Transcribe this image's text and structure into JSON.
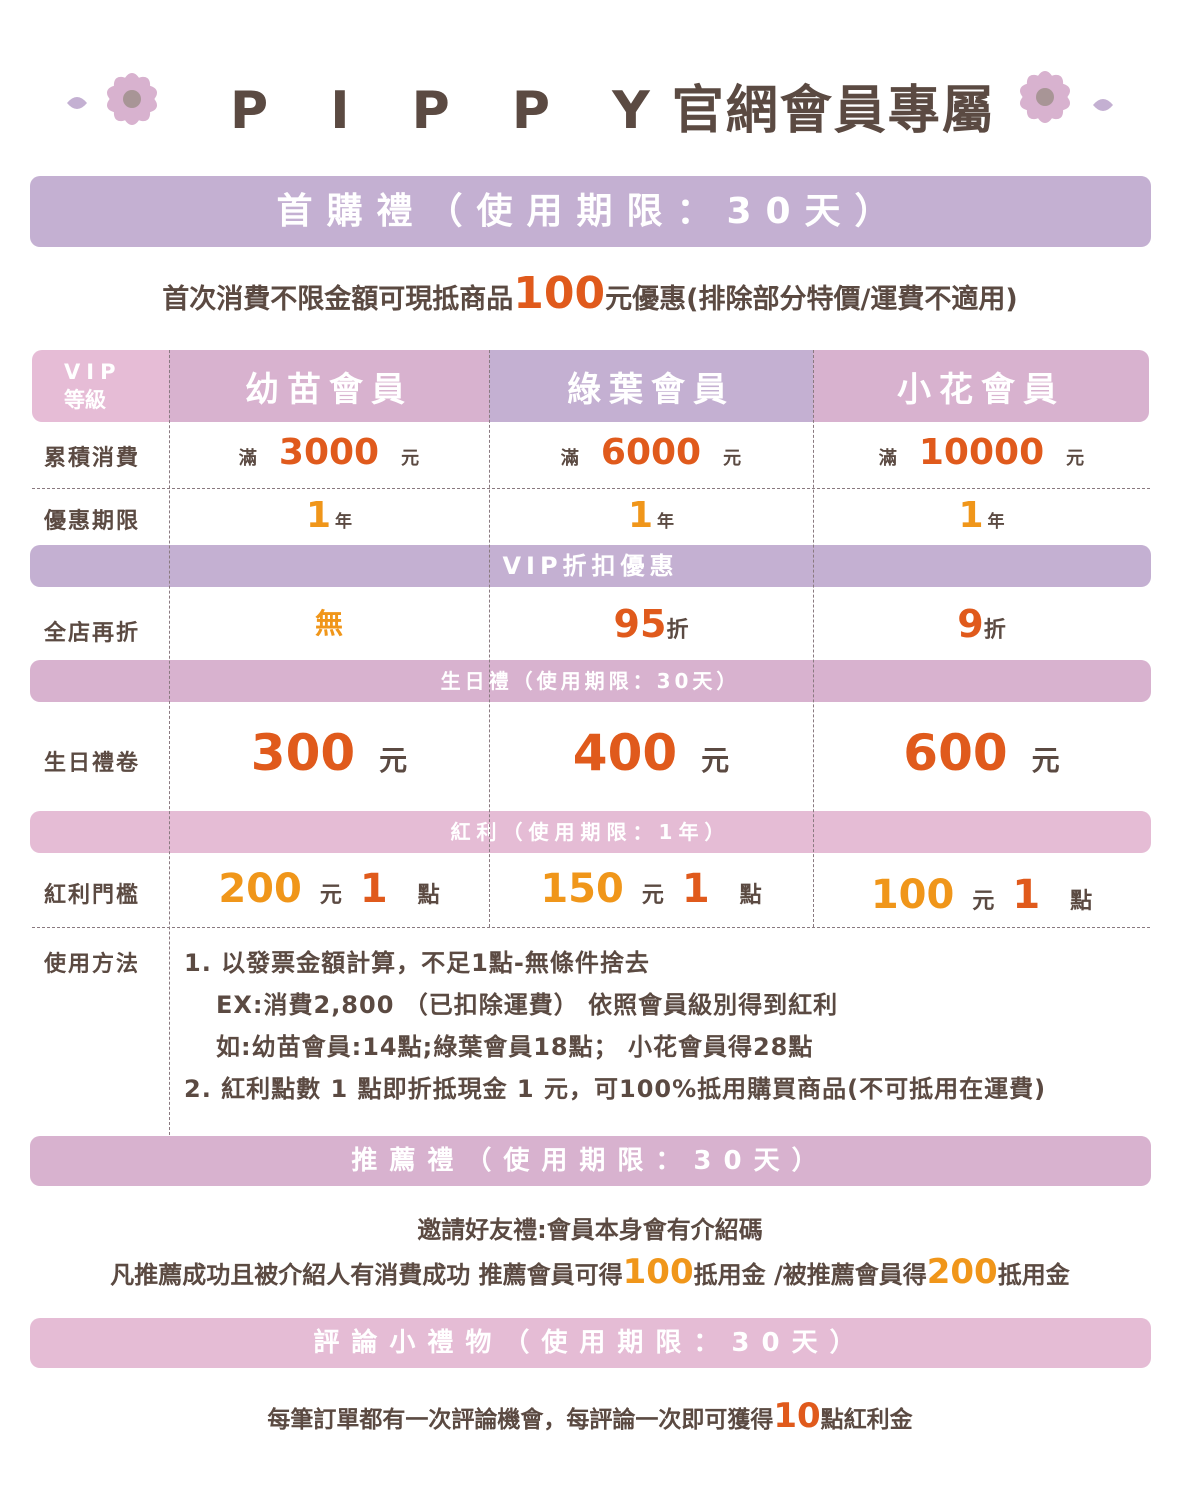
{
  "title": {
    "brand": "P I P P Y",
    "text": "官網會員專屬"
  },
  "first_purchase": {
    "band": "首購禮（使用期限：30天）",
    "desc_pre": "首次消費不限金額可現抵商品",
    "amount": "100",
    "desc_post": "元優惠(排除部分特價/運費不適用)"
  },
  "table": {
    "corner": {
      "line1": "VIP",
      "line2": "等級"
    },
    "tiers": [
      {
        "name": "幼苗會員",
        "spend": "3000",
        "period": "1",
        "discount": "無",
        "discount_unit": "",
        "birthday": "300",
        "bonus_amount": "200",
        "bonus_points": "1"
      },
      {
        "name": "綠葉會員",
        "spend": "6000",
        "period": "1",
        "discount": "95",
        "discount_unit": "折",
        "birthday": "400",
        "bonus_amount": "150",
        "bonus_points": "1"
      },
      {
        "name": "小花會員",
        "spend": "10000",
        "period": "1",
        "discount": "9",
        "discount_unit": "折",
        "birthday": "600",
        "bonus_amount": "100",
        "bonus_points": "1"
      }
    ],
    "row_labels": {
      "spend": "累積消費",
      "period": "優惠期限",
      "discount": "全店再折",
      "birthday": "生日禮卷",
      "bonus": "紅利門檻",
      "usage": "使用方法"
    },
    "units": {
      "full": "滿",
      "yuan": "元",
      "year": "年",
      "point": "點"
    },
    "bands": {
      "vip": "VIP折扣優惠",
      "birthday": "生日禮（使用期限：30天）",
      "bonus": "紅利（使用期限：1年）"
    },
    "usage": [
      "1. 以發票金額計算，不足1點-無條件捨去",
      "EX:消費2,800 （已扣除運費） 依照會員級別得到紅利",
      "如:幼苗會員:14點;綠葉會員18點； 小花會員得28點",
      "2. 紅利點數 1 點即折抵現金 1 元，可100%抵用購買商品(不可抵用在運費)"
    ]
  },
  "referral": {
    "band": "推薦禮（使用期限：30天）",
    "line1": "邀請好友禮:會員本身會有介紹碼",
    "line2_a": "凡推薦成功且被介紹人有消費成功 推薦會員可得",
    "amount1": "100",
    "line2_b": "抵用金 /被推薦會員得",
    "amount2": "200",
    "line2_c": "抵用金"
  },
  "review": {
    "band": "評論小禮物（使用期限：30天）",
    "pre": "每筆訂單都有一次評論機會，每評論一次即可獲得",
    "points": "10",
    "post": "點紅利金"
  },
  "colors": {
    "lilac": "#c4b0d2",
    "pink": "#d8b2cf",
    "light_pink": "#e5bcd5",
    "brown": "#5b4a42",
    "red": "#e05a1c",
    "orange": "#f0961a"
  }
}
